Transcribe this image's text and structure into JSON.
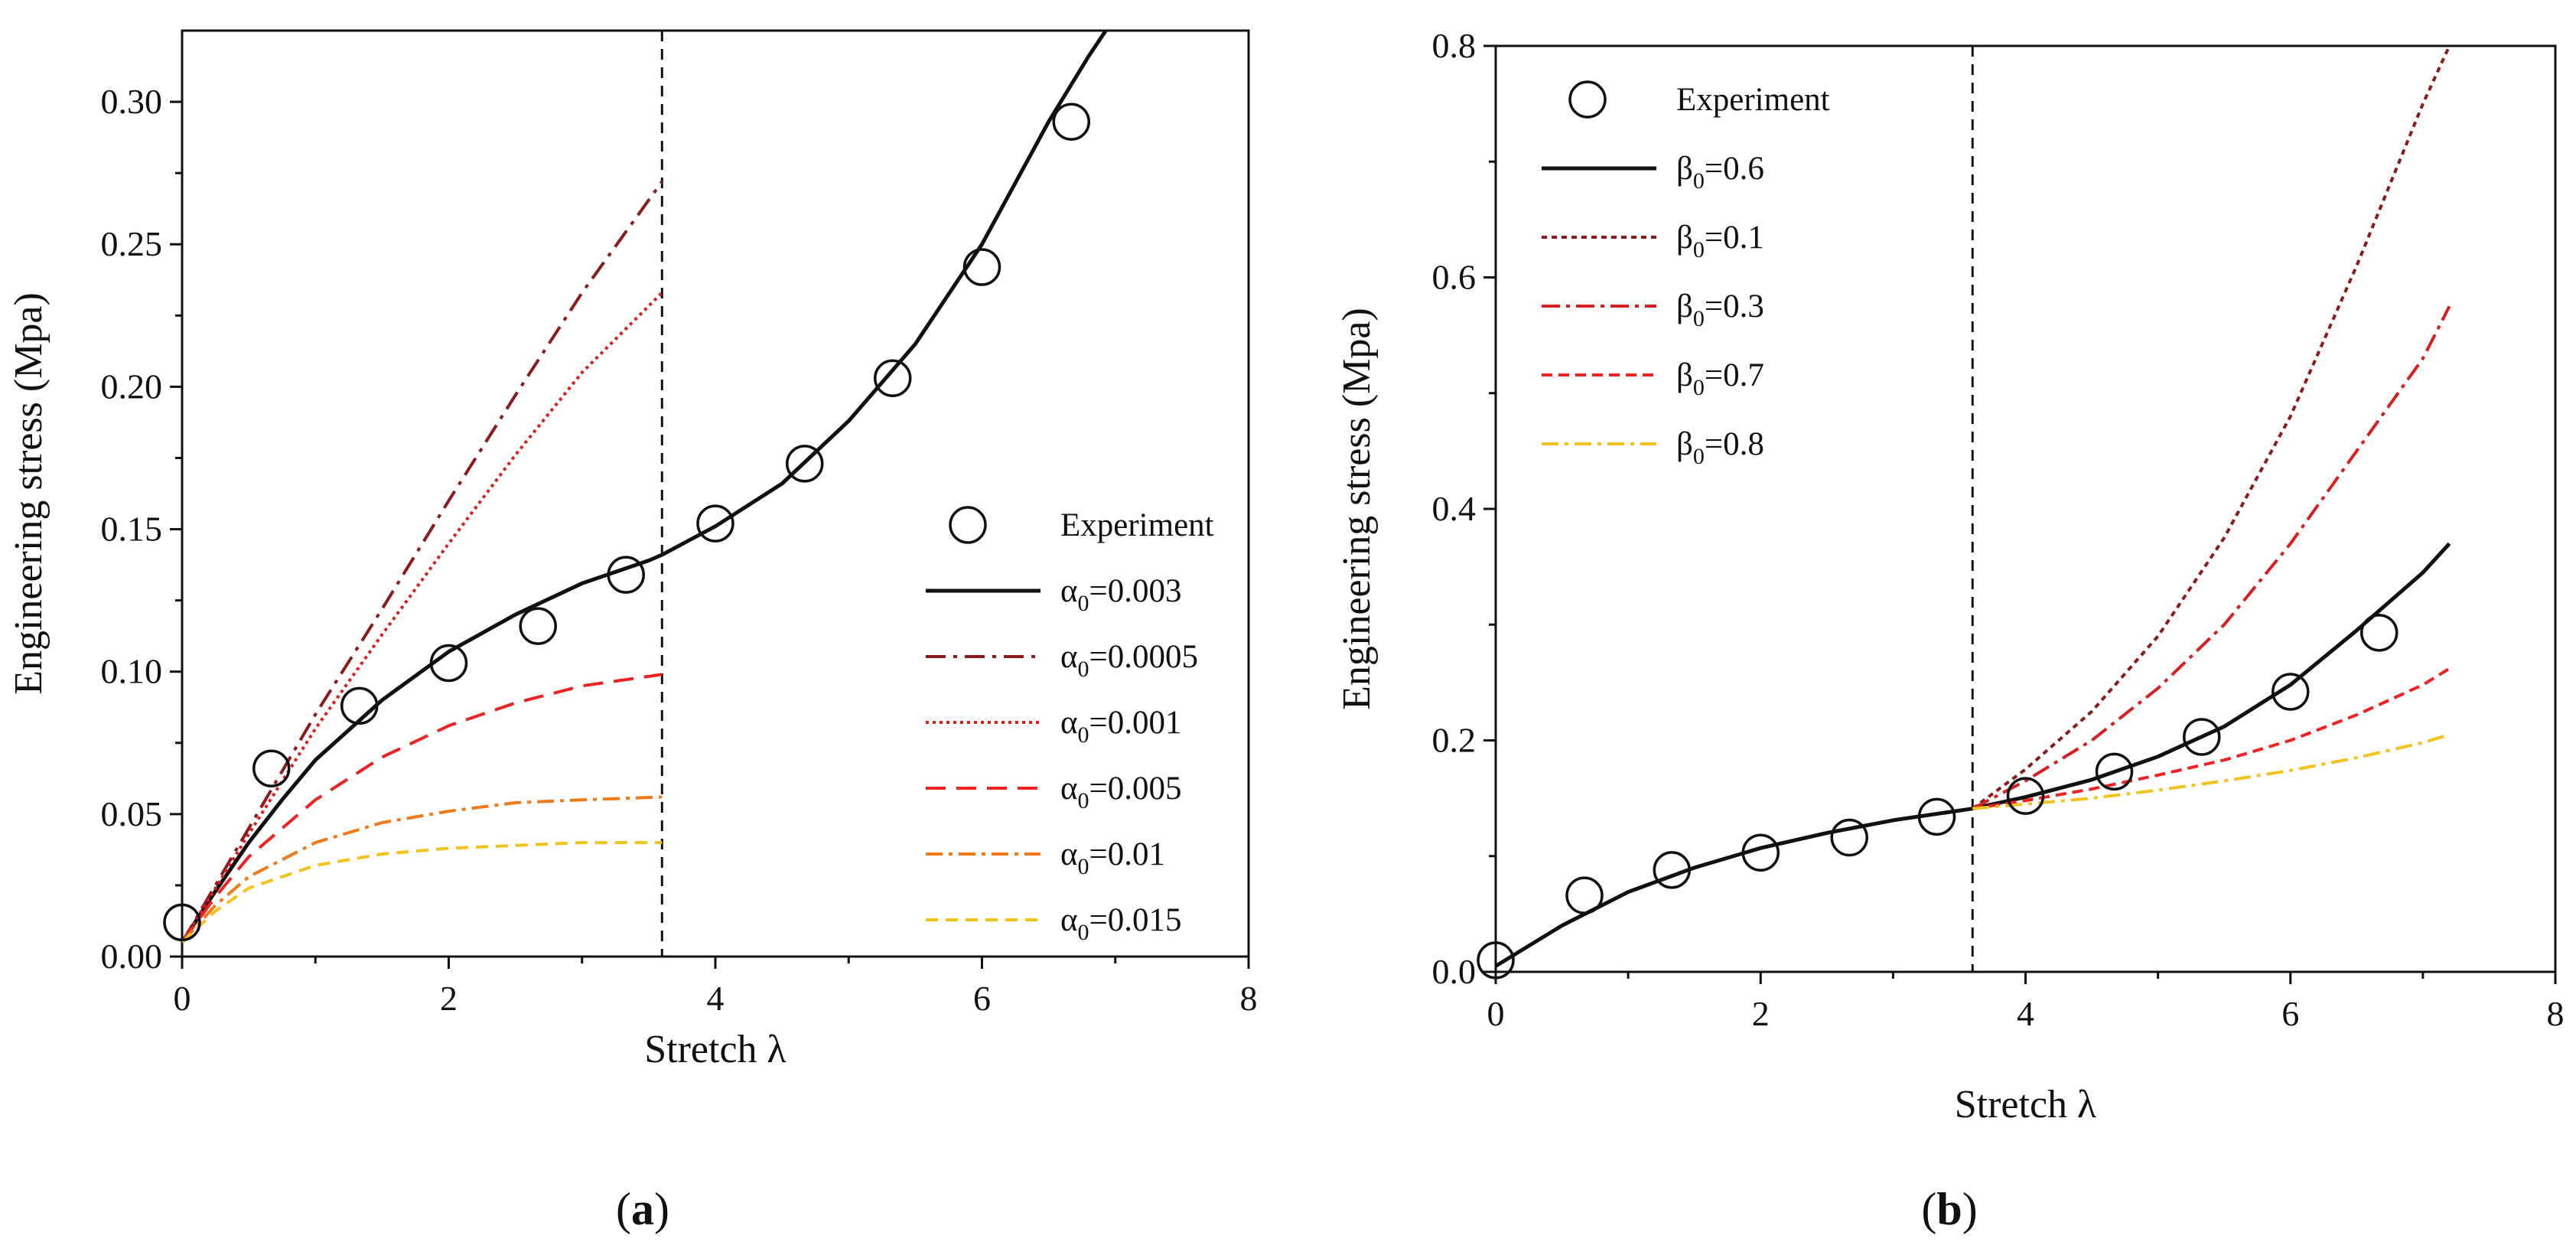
{
  "chart_data": [
    {
      "panel": "a",
      "type": "line",
      "caption": "(a)",
      "caption_letter": "a",
      "xlabel": "Stretch λ",
      "ylabel": "Engineering stress (Mpa)",
      "xlim": [
        0,
        8
      ],
      "ylim": [
        0,
        0.325
      ],
      "xticks": [
        0,
        2,
        4,
        6,
        8
      ],
      "yticks": [
        0.0,
        0.05,
        0.1,
        0.15,
        0.2,
        0.25,
        0.3
      ],
      "ytick_decimals": 2,
      "vline_x": 3.6,
      "legend_position": "lower-right",
      "experiment": {
        "name": "Experiment",
        "x": [
          0.0,
          0.67,
          1.33,
          2.0,
          2.67,
          3.33,
          4.0,
          4.67,
          5.33,
          6.0,
          6.67
        ],
        "y": [
          0.012,
          0.066,
          0.088,
          0.103,
          0.116,
          0.134,
          0.152,
          0.173,
          0.203,
          0.242,
          0.293
        ]
      },
      "series": [
        {
          "greek": "α",
          "sub": "0",
          "value": "=0.003",
          "color": "#111111",
          "dash": "",
          "x": [
            0,
            0.25,
            0.5,
            0.75,
            1.0,
            1.5,
            2.0,
            2.5,
            3.0,
            3.5,
            3.6,
            4.0,
            4.5,
            5.0,
            5.5,
            6.0,
            6.5,
            6.8,
            7.0
          ],
          "y": [
            0.005,
            0.023,
            0.04,
            0.055,
            0.069,
            0.09,
            0.107,
            0.12,
            0.131,
            0.139,
            0.141,
            0.151,
            0.166,
            0.188,
            0.215,
            0.25,
            0.293,
            0.316,
            0.33
          ]
        },
        {
          "greek": "α",
          "sub": "0",
          "value": "=0.0005",
          "color": "#8b1a1a",
          "dash": "26 10 5 10",
          "x": [
            0,
            0.5,
            1.0,
            1.5,
            2.0,
            2.5,
            3.0,
            3.6
          ],
          "y": [
            0.005,
            0.045,
            0.085,
            0.122,
            0.16,
            0.197,
            0.233,
            0.272
          ]
        },
        {
          "greek": "α",
          "sub": "0",
          "value": "=0.001",
          "color": "#d62020",
          "dash": "4 5",
          "x": [
            0,
            0.5,
            1.0,
            1.5,
            2.0,
            2.5,
            3.0,
            3.6
          ],
          "y": [
            0.005,
            0.043,
            0.08,
            0.113,
            0.145,
            0.176,
            0.205,
            0.233
          ]
        },
        {
          "greek": "α",
          "sub": "0",
          "value": "=0.005",
          "color": "#ee2222",
          "dash": "26 14",
          "x": [
            0,
            0.25,
            0.5,
            1.0,
            1.5,
            2.0,
            2.5,
            3.0,
            3.6
          ],
          "y": [
            0.005,
            0.021,
            0.035,
            0.055,
            0.07,
            0.081,
            0.089,
            0.095,
            0.099
          ]
        },
        {
          "greek": "α",
          "sub": "0",
          "value": "=0.01",
          "color": "#f07a1a",
          "dash": "22 8 5 8",
          "x": [
            0,
            0.25,
            0.5,
            1.0,
            1.5,
            2.0,
            2.5,
            3.0,
            3.6
          ],
          "y": [
            0.005,
            0.018,
            0.028,
            0.04,
            0.047,
            0.051,
            0.054,
            0.055,
            0.056
          ]
        },
        {
          "greek": "α",
          "sub": "0",
          "value": "=0.015",
          "color": "#f2c31d",
          "dash": "16 10",
          "x": [
            0,
            0.25,
            0.5,
            1.0,
            1.5,
            2.0,
            2.5,
            3.0,
            3.6
          ],
          "y": [
            0.005,
            0.016,
            0.024,
            0.032,
            0.036,
            0.038,
            0.039,
            0.04,
            0.04
          ]
        }
      ]
    },
    {
      "panel": "b",
      "type": "line",
      "caption": "(b)",
      "caption_letter": "b",
      "xlabel": "Stretch λ",
      "ylabel": "Engineering stress (Mpa)",
      "xlim": [
        0,
        8
      ],
      "ylim": [
        0,
        0.8
      ],
      "xticks": [
        0,
        2,
        4,
        6,
        8
      ],
      "yticks": [
        0.0,
        0.2,
        0.4,
        0.6,
        0.8
      ],
      "ytick_decimals": 1,
      "vline_x": 3.6,
      "legend_position": "top-left",
      "experiment": {
        "name": "Experiment",
        "x": [
          0.0,
          0.67,
          1.33,
          2.0,
          2.67,
          3.33,
          4.0,
          4.67,
          5.33,
          6.0,
          6.67
        ],
        "y": [
          0.01,
          0.066,
          0.088,
          0.103,
          0.116,
          0.134,
          0.152,
          0.173,
          0.203,
          0.242,
          0.293
        ]
      },
      "series": [
        {
          "greek": "β",
          "sub": "0",
          "value": "=0.6",
          "color": "#111111",
          "dash": "",
          "x": [
            0,
            0.5,
            1.0,
            1.5,
            2.0,
            2.5,
            3.0,
            3.6,
            4.0,
            4.5,
            5.0,
            5.5,
            6.0,
            6.5,
            7.0,
            7.2
          ],
          "y": [
            0.005,
            0.04,
            0.069,
            0.09,
            0.107,
            0.12,
            0.131,
            0.141,
            0.151,
            0.166,
            0.186,
            0.212,
            0.248,
            0.295,
            0.345,
            0.37
          ]
        },
        {
          "greek": "β",
          "sub": "0",
          "value": "=0.1",
          "color": "#8b1a1a",
          "dash": "7 6",
          "x": [
            3.6,
            4.0,
            4.5,
            5.0,
            5.5,
            6.0,
            6.5,
            7.0,
            7.2
          ],
          "y": [
            0.141,
            0.175,
            0.225,
            0.29,
            0.375,
            0.48,
            0.61,
            0.75,
            0.8
          ]
        },
        {
          "greek": "β",
          "sub": "0",
          "value": "=0.3",
          "color": "#d62020",
          "dash": "24 8 5 8",
          "x": [
            3.6,
            4.0,
            4.5,
            5.0,
            5.5,
            6.0,
            6.5,
            7.0,
            7.2
          ],
          "y": [
            0.141,
            0.165,
            0.2,
            0.245,
            0.3,
            0.37,
            0.45,
            0.53,
            0.575
          ]
        },
        {
          "greek": "β",
          "sub": "0",
          "value": "=0.7",
          "color": "#ee2222",
          "dash": "14 8",
          "x": [
            3.6,
            4.0,
            4.5,
            5.0,
            5.5,
            6.0,
            6.5,
            7.0,
            7.2
          ],
          "y": [
            0.141,
            0.148,
            0.158,
            0.17,
            0.183,
            0.2,
            0.222,
            0.248,
            0.262
          ]
        },
        {
          "greek": "β",
          "sub": "0",
          "value": "=0.8",
          "color": "#f2c31d",
          "dash": "22 8 5 8",
          "x": [
            3.6,
            4.0,
            4.5,
            5.0,
            5.5,
            6.0,
            6.5,
            7.0,
            7.2
          ],
          "y": [
            0.141,
            0.145,
            0.15,
            0.157,
            0.165,
            0.174,
            0.185,
            0.198,
            0.205
          ]
        }
      ]
    }
  ]
}
